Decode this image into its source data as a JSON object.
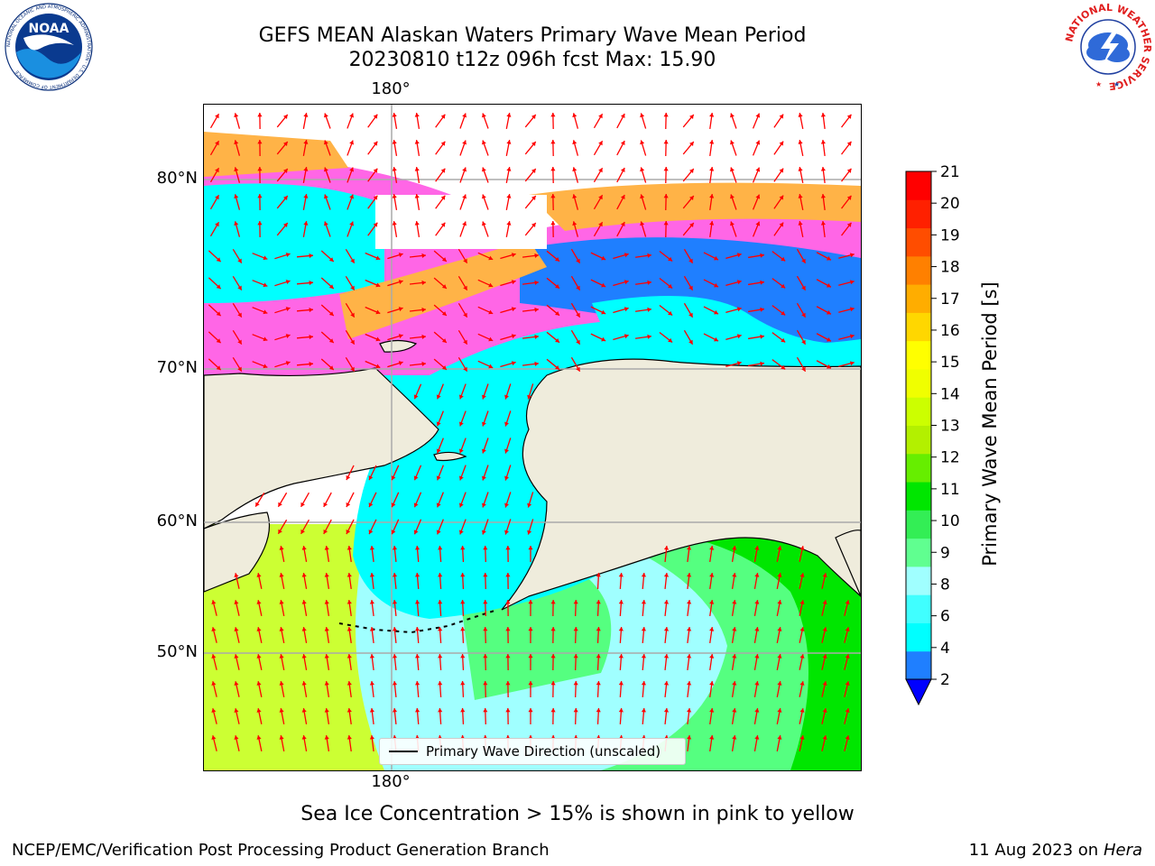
{
  "title": {
    "line1": "GEFS MEAN Alaskan Waters Primary Wave Mean Period",
    "line2": "20230810 t12z 096h fcst   Max: 15.90"
  },
  "map": {
    "lon_label_top": "180°",
    "lon_label_bottom": "180°",
    "lat_labels": [
      "80°N",
      "70°N",
      "60°N",
      "50°N"
    ],
    "legend_label": "Primary Wave Direction (unscaled)",
    "arrow_color": "#ff0000",
    "land_color": "#efecdc",
    "ocean_colors": {
      "ice_pink": "#ff66e6",
      "ice_orange": "#ffb347",
      "cyan": "#00ffff",
      "blue": "#1f7fff",
      "pale_cyan": "#a0ffff",
      "light_green": "#55ff80",
      "green": "#00e600",
      "yellow_green": "#ccff33"
    }
  },
  "colorbar": {
    "label": "Primary Wave Mean Period [s]",
    "ticks": [
      "2",
      "4",
      "6",
      "8",
      "9",
      "10",
      "11",
      "12",
      "13",
      "14",
      "15",
      "16",
      "17",
      "18",
      "19",
      "20",
      "21"
    ],
    "colors": [
      "#1f7fff",
      "#00ffff",
      "#40ffff",
      "#a0ffff",
      "#60ff90",
      "#33ee55",
      "#00e600",
      "#66ee00",
      "#b3f000",
      "#ccff00",
      "#f0ff00",
      "#ffff00",
      "#ffd700",
      "#ffad00",
      "#ff8000",
      "#ff4d00",
      "#ff2000",
      "#ff0000"
    ],
    "underflow_color": "#0000ff"
  },
  "subtitle": "Sea Ice Concentration > 15% is shown in pink to yellow",
  "footer": {
    "left": "NCEP/EMC/Verification Post Processing Product Generation Branch",
    "right_date": "11 Aug 2023 on",
    "right_host": "Hera"
  },
  "logos": {
    "noaa_text": "NOAA",
    "noaa_ring_text": "NATIONAL OCEANIC AND ATMOSPHERIC ADMINISTRATION · U.S. DEPARTMENT OF COMMERCE",
    "nws_ring_text": "NATIONAL WEATHER SERVICE"
  }
}
